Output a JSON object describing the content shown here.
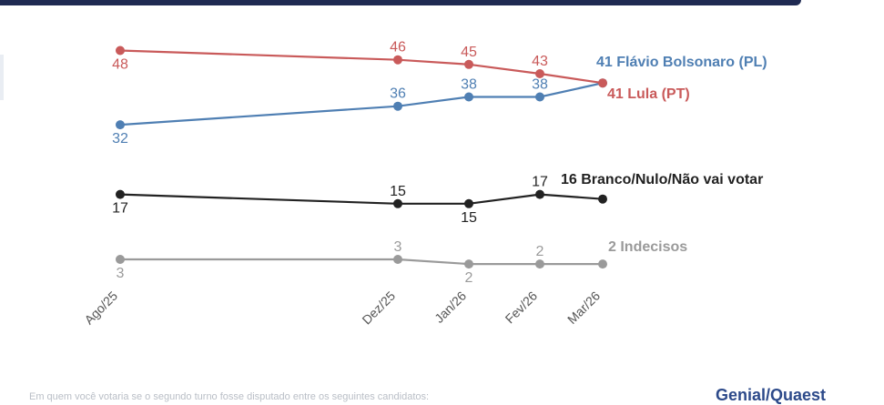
{
  "chart_data": {
    "type": "line",
    "categories": [
      "Ago/25",
      "Dez/25",
      "Jan/26",
      "Fev/26",
      "Mar/26"
    ],
    "ylim": [
      0,
      50
    ],
    "grid": false,
    "series": [
      {
        "name": "Flávio Bolsonaro (PL)",
        "end_label": "41 Flávio Bolsonaro (PL)",
        "color": "#4f7fb3",
        "values": [
          32,
          36,
          38,
          38,
          41
        ],
        "data_labels": [
          "32",
          "36",
          "38",
          "38"
        ],
        "label_pos": [
          "below",
          "above",
          "above",
          "above"
        ]
      },
      {
        "name": "Lula (PT)",
        "end_label": "41 Lula (PT)",
        "color": "#c95a5a",
        "values": [
          48,
          46,
          45,
          43,
          41
        ],
        "data_labels": [
          "48",
          "46",
          "45",
          "43"
        ],
        "label_pos": [
          "below",
          "above",
          "above",
          "above"
        ]
      },
      {
        "name": "Branco/Nulo/Não vai votar",
        "end_label": "16 Branco/Nulo/Não vai votar",
        "color": "#222222",
        "values": [
          17,
          15,
          15,
          17,
          16
        ],
        "data_labels": [
          "17",
          "15",
          "15",
          "17"
        ],
        "label_pos": [
          "below",
          "above",
          "below",
          "above"
        ]
      },
      {
        "name": "Indecisos",
        "end_label": "2 Indecisos",
        "color": "#9a9a9a",
        "values": [
          3,
          3,
          2,
          2,
          2
        ],
        "data_labels": [
          "3",
          "3",
          "2",
          "2"
        ],
        "label_pos": [
          "below",
          "above",
          "below",
          "above"
        ]
      }
    ]
  },
  "footer": {
    "note": "Em quem você votaria se o segundo turno fosse disputado entre os seguintes candidatos:",
    "brand": "Genial/Quaest"
  },
  "colors": {
    "header_bar": "#1f2a52",
    "brand": "#2d4a8a"
  }
}
